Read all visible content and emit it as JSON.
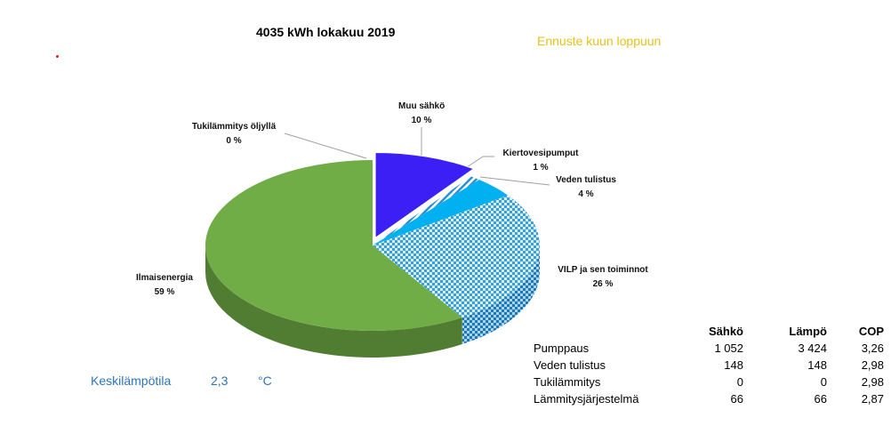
{
  "chart_data": {
    "type": "pie",
    "title": "4035  kWh lokakuu 2019",
    "slices": [
      {
        "name": "Muu sähkö",
        "value": 10,
        "label": "10 %",
        "color": "#3b1ff5"
      },
      {
        "name": "Kiertovesipumput",
        "value": 1,
        "label": "1 %",
        "color": "#4aa3d8",
        "pattern": "diagonal"
      },
      {
        "name": "Veden tulistus",
        "value": 4,
        "label": "4 %",
        "color": "#00b0f0"
      },
      {
        "name": "VILP ja sen toiminnot",
        "value": 26,
        "label": "26 %",
        "color": "#5bb0dd",
        "pattern": "checker"
      },
      {
        "name": "Ilmaisenergia",
        "value": 59,
        "label": "59 %",
        "color": "#70ad47"
      },
      {
        "name": "Tukilämmitys öljyllä",
        "value": 0,
        "label": "0 %",
        "color": "#c0c0c0"
      }
    ]
  },
  "forecast": "Ennuste kuun loppuun",
  "average_temp": {
    "label": "Keskilämpötila",
    "value": "2,3",
    "unit": "°C"
  },
  "table": {
    "headers": [
      "Sähkö",
      "Lämpö",
      "COP"
    ],
    "rows": [
      {
        "name": "Pumppaus",
        "values": [
          "1 052",
          "3 424",
          "3,26"
        ]
      },
      {
        "name": "Veden tulistus",
        "values": [
          "148",
          "148",
          "2,98"
        ]
      },
      {
        "name": "Tukilämmitys",
        "values": [
          "0",
          "0",
          "2,98"
        ]
      },
      {
        "name": "Lämmitysjärjestelmä",
        "values": [
          "66",
          "66",
          "2,87"
        ]
      }
    ]
  }
}
